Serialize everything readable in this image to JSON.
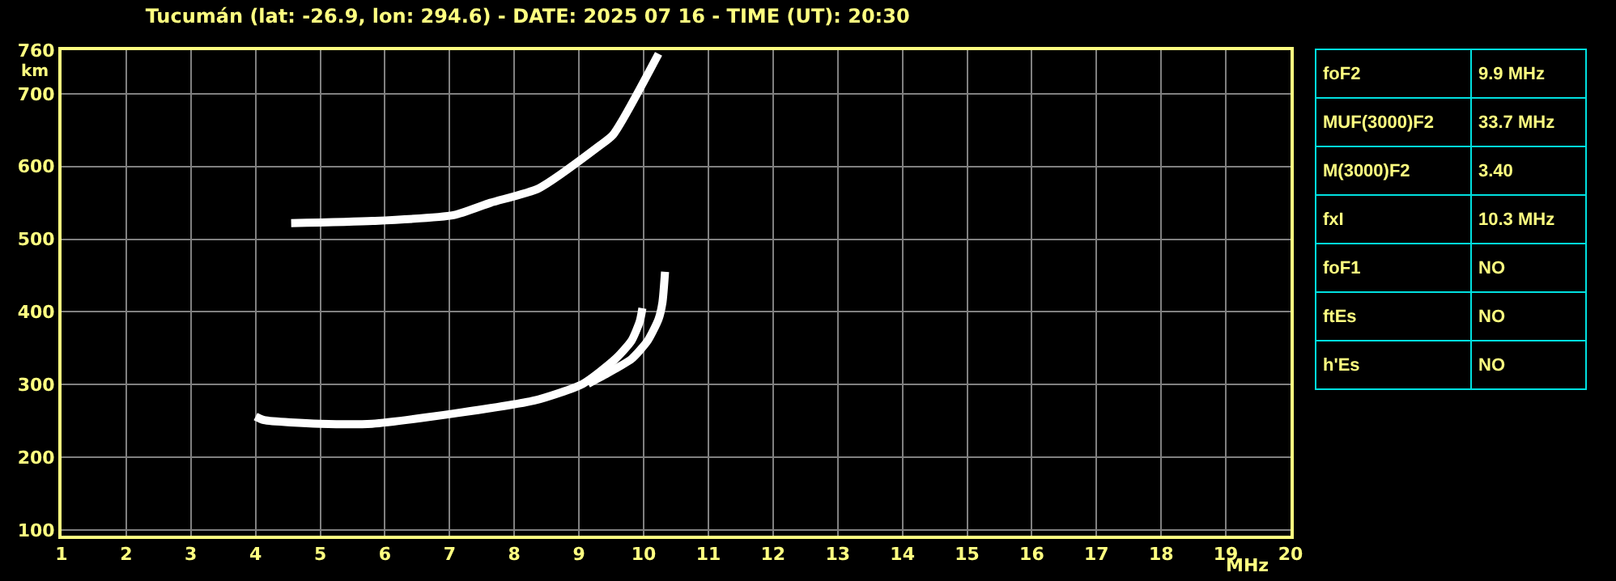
{
  "chart_data": {
    "type": "line",
    "title": "Tucumán (lat: -26.9, lon: 294.6) - DATE: 2025 07 16 - TIME (UT): 20:30",
    "xlabel": "MHz",
    "ylabel": "km",
    "xlim": [
      1,
      20
    ],
    "xticks": [
      1,
      2,
      3,
      4,
      5,
      6,
      7,
      8,
      9,
      10,
      11,
      12,
      13,
      14,
      15,
      16,
      17,
      18,
      19,
      20
    ],
    "ylim": [
      92,
      760
    ],
    "yticks": [
      100,
      200,
      300,
      400,
      500,
      600,
      700,
      760
    ],
    "grid": true,
    "marker": "none",
    "line_style": "solid",
    "series": [
      {
        "color": "#ffffff",
        "x": [
          4.0,
          4.13,
          5.0,
          5.8,
          7.06,
          8.31,
          9.06,
          9.56,
          9.81,
          9.94,
          9.98
        ],
        "values": [
          256,
          251,
          246,
          246,
          260,
          278,
          301,
          335,
          360,
          387,
          405
        ]
      },
      {
        "color": "#ffffff",
        "x": [
          9.14,
          9.39,
          9.81,
          10.06,
          10.23,
          10.29,
          10.33
        ],
        "values": [
          301,
          313,
          335,
          360,
          390,
          413,
          455
        ]
      },
      {
        "color": "#ffffff",
        "x": [
          4.55,
          5.81,
          7.06,
          7.63,
          8.38,
          9.31,
          9.53,
          10.23
        ],
        "values": [
          522,
          525,
          533,
          550,
          570,
          628,
          644,
          755
        ]
      }
    ],
    "annotations": [
      "foF2",
      "9.9 MHz",
      "MUF(3000)F2",
      "33.7 MHz",
      "M(3000)F2",
      "3.40",
      "fxI",
      "10.3 MHz",
      "foF1",
      "NO",
      "ftEs",
      "NO",
      "h'Es",
      "NO"
    ]
  }
}
